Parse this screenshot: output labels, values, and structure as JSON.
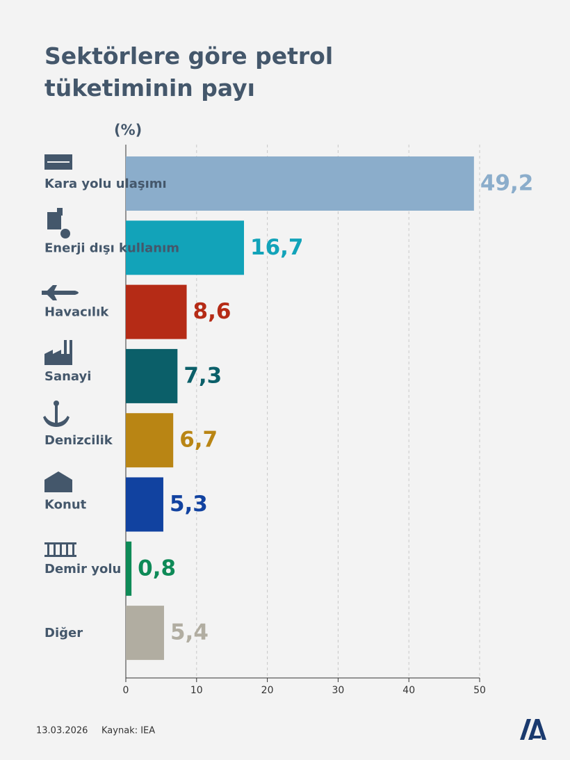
{
  "chart_data": {
    "type": "barh",
    "title": "Sektörlere göre petrol tüketiminin payı",
    "unit_label": "(%)",
    "categories": [
      "Kara yolu ulaşımı",
      "Enerji dışı kullanım",
      "Havacılık",
      "Sanayi",
      "Denizcilik",
      "Konut",
      "Demir yolu",
      "Diğer"
    ],
    "values": [
      49.2,
      16.7,
      8.6,
      7.3,
      6.7,
      5.3,
      0.8,
      5.4
    ],
    "value_labels": [
      "49,2",
      "16,7",
      "8,6",
      "7,3",
      "6,7",
      "5,3",
      "0,8",
      "5,4"
    ],
    "colors": [
      "#8badcb",
      "#12a3b9",
      "#b52b16",
      "#0b5f69",
      "#b98514",
      "#1142a0",
      "#0e8a57",
      "#b1ada1"
    ],
    "xlim": [
      0,
      50
    ],
    "xticks": [
      0,
      10,
      20,
      30,
      40,
      50
    ],
    "grid": true,
    "date": "13.03.2026",
    "source": "Kaynak: IEA"
  }
}
